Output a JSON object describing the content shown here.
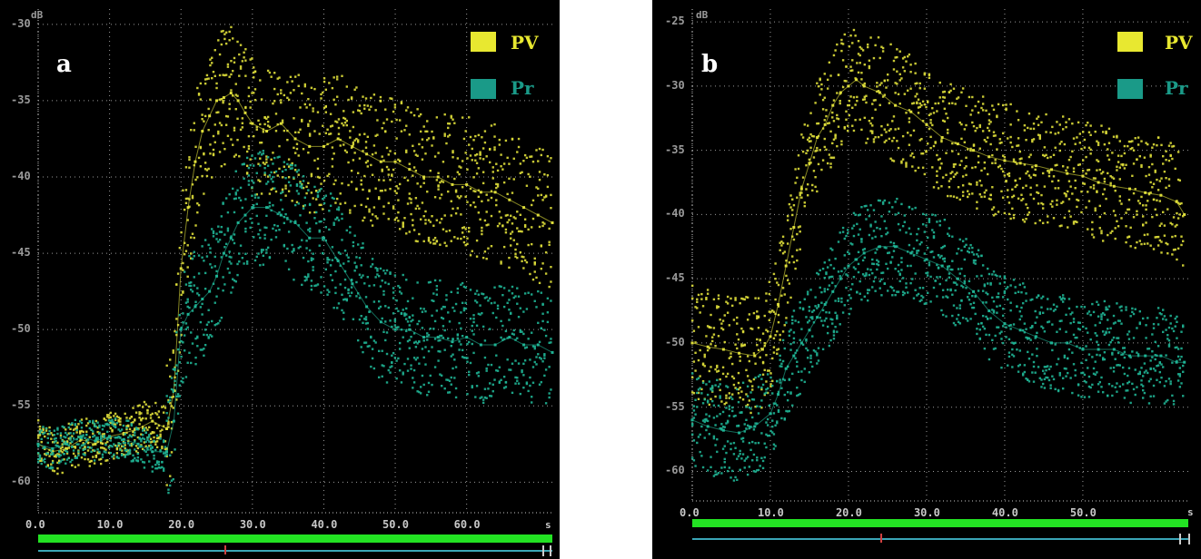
{
  "chart_data": [
    {
      "type": "scatter",
      "panel_label": "a",
      "y_unit": "dB",
      "x_unit": "s",
      "ylim": [
        -62,
        -29
      ],
      "xlim": [
        0,
        72
      ],
      "x_ticks": [
        "0.0",
        "10.0",
        "20.0",
        "30.0",
        "40.0",
        "50.0",
        "60.0"
      ],
      "y_ticks": [
        "-30",
        "-35",
        "-40",
        "-45",
        "-50",
        "-55",
        "-60"
      ],
      "grid": true,
      "legend": {
        "position": "top-right",
        "entries": [
          {
            "label": "PV",
            "color": "#e8e830"
          },
          {
            "label": "Pr",
            "color": "#1a9a88"
          }
        ]
      },
      "series": [
        {
          "name": "PV",
          "color": "#dede3a",
          "x": [
            0,
            2,
            4,
            6,
            8,
            10,
            12,
            14,
            16,
            18,
            19,
            20,
            21,
            22,
            23,
            24,
            25,
            26,
            27,
            28,
            29,
            30,
            32,
            34,
            36,
            38,
            40,
            42,
            44,
            46,
            48,
            50,
            52,
            54,
            56,
            58,
            60,
            62,
            64,
            66,
            68,
            70,
            72
          ],
          "y": [
            -57.5,
            -58,
            -57.8,
            -57.2,
            -57.5,
            -57,
            -56.8,
            -56.5,
            -56,
            -56.5,
            -54,
            -46,
            -42,
            -39,
            -37,
            -36,
            -35,
            -34.8,
            -34.5,
            -35,
            -35.8,
            -36.5,
            -37,
            -36.5,
            -37.5,
            -38,
            -38,
            -37.5,
            -38,
            -38.5,
            -39,
            -39,
            -39.5,
            -40,
            -40,
            -40.5,
            -40.5,
            -41,
            -41,
            -41.5,
            -42,
            -42.5,
            -43
          ]
        },
        {
          "name": "Pr",
          "color": "#1fb394",
          "x": [
            0,
            2,
            4,
            6,
            8,
            10,
            12,
            14,
            16,
            18,
            19,
            20,
            21,
            22,
            23,
            24,
            25,
            26,
            27,
            28,
            29,
            30,
            32,
            34,
            36,
            38,
            40,
            42,
            44,
            46,
            48,
            50,
            52,
            54,
            56,
            58,
            60,
            62,
            64,
            66,
            68,
            70,
            72
          ],
          "y": [
            -57.5,
            -57.8,
            -57.5,
            -57,
            -57.3,
            -57,
            -57.2,
            -57.5,
            -58,
            -58,
            -56,
            -50,
            -49,
            -48.5,
            -48,
            -47.5,
            -46.5,
            -45,
            -44,
            -43,
            -42.5,
            -42,
            -42,
            -42.5,
            -43,
            -44,
            -44,
            -45.5,
            -47,
            -48.5,
            -49.5,
            -50,
            -50,
            -50.5,
            -50.5,
            -50.8,
            -50.5,
            -51,
            -51,
            -50.5,
            -51,
            -51,
            -51.5
          ]
        }
      ]
    },
    {
      "type": "scatter",
      "panel_label": "b",
      "y_unit": "dB",
      "x_unit": "s",
      "ylim": [
        -62.3,
        -24
      ],
      "xlim": [
        0,
        63.5
      ],
      "x_ticks": [
        "0.0",
        "10.0",
        "20.0",
        "30.0",
        "40.0",
        "50.0"
      ],
      "y_ticks": [
        "-25",
        "-30",
        "-35",
        "-40",
        "-45",
        "-50",
        "-55",
        "-60"
      ],
      "grid": true,
      "legend": {
        "position": "top-right",
        "entries": [
          {
            "label": "PV",
            "color": "#e8e830"
          },
          {
            "label": "Pr",
            "color": "#1a9a88"
          }
        ]
      },
      "series": [
        {
          "name": "PV",
          "color": "#dede3a",
          "x": [
            0,
            2,
            4,
            6,
            8,
            9,
            10,
            11,
            12,
            13,
            14,
            15,
            16,
            17,
            18,
            19,
            20,
            21,
            22,
            24,
            26,
            28,
            30,
            32,
            34,
            36,
            38,
            40,
            42,
            44,
            46,
            48,
            50,
            52,
            54,
            56,
            58,
            60,
            62,
            63
          ],
          "y": [
            -50,
            -50.3,
            -50.5,
            -50.8,
            -51,
            -50.5,
            -49.5,
            -47,
            -44,
            -41,
            -38,
            -36,
            -34,
            -33,
            -31.5,
            -30.5,
            -30,
            -29.5,
            -30,
            -30.5,
            -31.5,
            -32,
            -33,
            -34,
            -34.5,
            -35,
            -35.5,
            -35.8,
            -36,
            -36.2,
            -36.5,
            -36.8,
            -37,
            -37.5,
            -37.8,
            -38,
            -38.3,
            -38.5,
            -39,
            -40
          ]
        },
        {
          "name": "Pr",
          "color": "#1fb394",
          "x": [
            0,
            2,
            4,
            6,
            8,
            10,
            11,
            12,
            13,
            14,
            15,
            16,
            17,
            18,
            19,
            20,
            21,
            22,
            24,
            26,
            28,
            30,
            32,
            34,
            36,
            38,
            40,
            42,
            44,
            46,
            48,
            50,
            52,
            54,
            56,
            58,
            60,
            62,
            63
          ],
          "y": [
            -56,
            -56.5,
            -56.8,
            -57,
            -56.5,
            -55.5,
            -54,
            -52,
            -51,
            -50,
            -49,
            -48,
            -47,
            -46,
            -45,
            -44,
            -43.5,
            -43,
            -42.5,
            -42.5,
            -43,
            -43.5,
            -44,
            -45,
            -46,
            -47.5,
            -48.5,
            -49,
            -49.5,
            -50,
            -50,
            -50.5,
            -50.5,
            -50.5,
            -51,
            -51,
            -51,
            -51.5,
            -51.5
          ]
        }
      ]
    }
  ]
}
